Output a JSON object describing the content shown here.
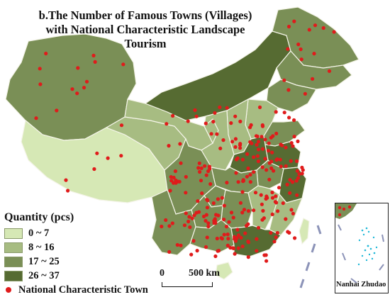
{
  "title": {
    "line1": "b.The Number of Famous Towns (Villages)",
    "line2": "with National Characteristic Landscape Tourism"
  },
  "legend": {
    "heading": "Quantity (pcs)",
    "classes": [
      {
        "label": "0 ~ 7",
        "color": "#d6e8b5"
      },
      {
        "label": "8 ~ 16",
        "color": "#a7bc82"
      },
      {
        "label": "17 ~ 25",
        "color": "#7a8f56"
      },
      {
        "label": "26 ~ 37",
        "color": "#566b32"
      }
    ],
    "point_label": "National Characteristic Town",
    "point_color": "#e01b1b"
  },
  "scale_bar": {
    "zero": "0",
    "distance": "500 km"
  },
  "inset": {
    "label": "Nanhai Zhudao"
  },
  "colors": {
    "border": "#f4f4e8",
    "islands": "#1fb8d8",
    "nine_dash": "#8c93b8"
  }
}
